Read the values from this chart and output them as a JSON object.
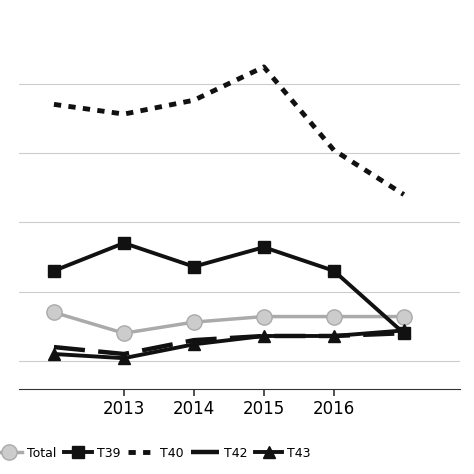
{
  "years": [
    2012,
    2013,
    2014,
    2015,
    2016,
    2017
  ],
  "series": [
    {
      "key": "total",
      "label": "Total",
      "values": [
        2.35,
        2.2,
        2.28,
        2.32,
        2.32,
        2.32
      ],
      "color": "#aaaaaa",
      "linestyle": "solid",
      "marker": "o",
      "markersize": 11,
      "linewidth": 2.5,
      "markerfacecolor": "#cccccc",
      "markeredgecolor": "#aaaaaa"
    },
    {
      "key": "T39",
      "label": "T39",
      "values": [
        2.65,
        2.85,
        2.68,
        2.82,
        2.65,
        2.2
      ],
      "color": "#111111",
      "linestyle": "solid",
      "marker": "s",
      "markersize": 9,
      "linewidth": 2.8,
      "markerfacecolor": "#111111",
      "markeredgecolor": "#111111"
    },
    {
      "key": "T40",
      "label": "T40",
      "values": [
        3.85,
        3.78,
        3.88,
        4.12,
        3.52,
        3.2
      ],
      "color": "#111111",
      "linestyle": "dotted",
      "marker": "none",
      "markersize": 0,
      "linewidth": 3.5,
      "markerfacecolor": "#111111",
      "markeredgecolor": "#111111"
    },
    {
      "key": "T42",
      "label": "T42",
      "values": [
        2.1,
        2.05,
        2.15,
        2.18,
        2.18,
        2.2
      ],
      "color": "#111111",
      "linestyle": "dashed",
      "marker": "none",
      "markersize": 0,
      "linewidth": 3.2,
      "markerfacecolor": "#111111",
      "markeredgecolor": "#111111"
    },
    {
      "key": "T43",
      "label": "T43",
      "values": [
        2.05,
        2.02,
        2.12,
        2.18,
        2.18,
        2.22
      ],
      "color": "#111111",
      "linestyle": "solid",
      "marker": "^",
      "markersize": 9,
      "linewidth": 2.8,
      "markerfacecolor": "#111111",
      "markeredgecolor": "#111111"
    }
  ],
  "xlim": [
    2011.5,
    2017.8
  ],
  "ylim": [
    1.8,
    4.5
  ],
  "xticks": [
    2013,
    2014,
    2015,
    2016
  ],
  "grid_color": "#cccccc",
  "background_color": "#ffffff"
}
